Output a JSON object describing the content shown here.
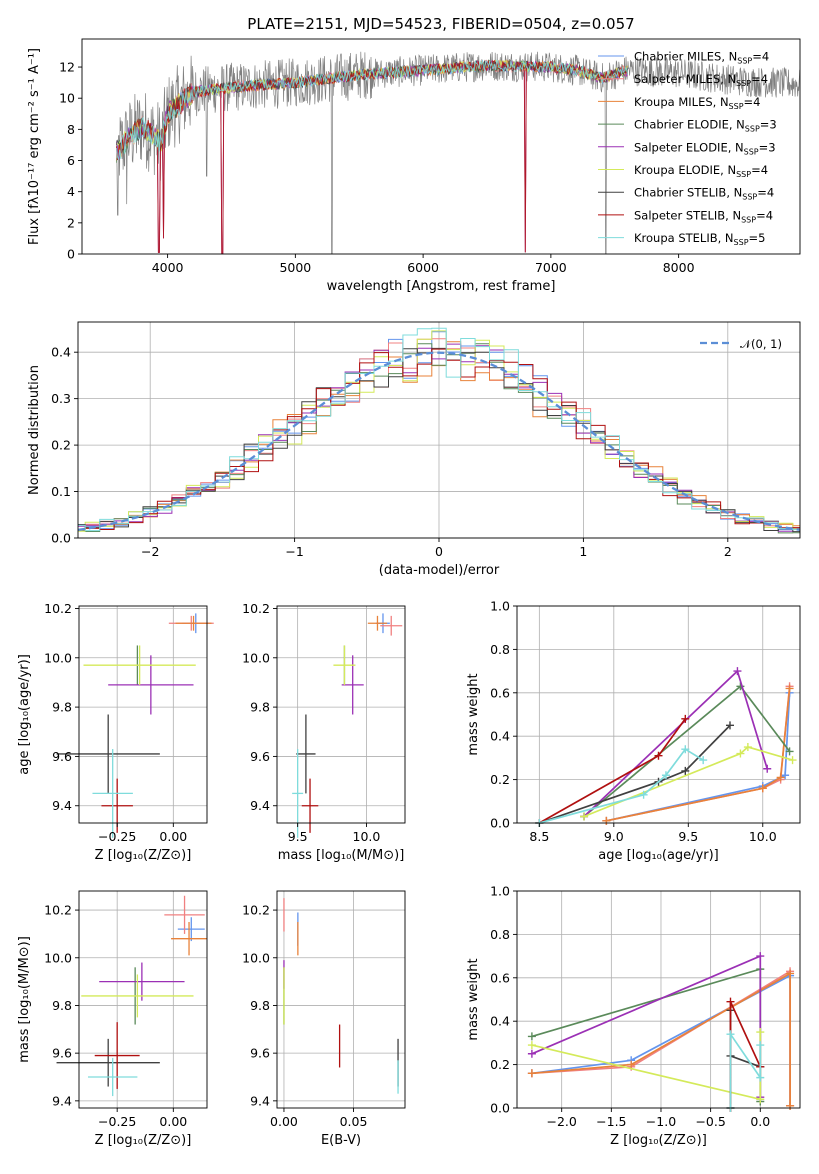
{
  "page": {
    "title": "PLATE=2151, MJD=54523, FIBERID=0504, z=0.057",
    "colors": {
      "Chabrier MILES": "#6495ed",
      "Salpeter MILES": "#f08080",
      "Kroupa MILES": "#e8823a",
      "Chabrier ELODIE": "#5a8a5a",
      "Salpeter ELODIE": "#9b30b5",
      "Kroupa ELODIE": "#d4ea5a",
      "Chabrier STELIB": "#404040",
      "Salpeter STELIB": "#b01010",
      "Kroupa STELIB": "#7fdcdc",
      "data": "#808080"
    }
  },
  "chart_data": [
    {
      "id": "spectrum",
      "type": "line",
      "xlabel": "wavelength [Angstrom, rest frame]",
      "ylabel": "Flux [fλ10⁻¹⁷ erg cm⁻² s⁻¹ A⁻¹]",
      "xlim": [
        3330,
        8950
      ],
      "ylim": [
        0,
        13.8
      ],
      "xticks": [
        4000,
        5000,
        6000,
        7000,
        8000
      ],
      "yticks": [
        0,
        2,
        4,
        6,
        8,
        10,
        12
      ],
      "grid": false,
      "legend_position": "top-right",
      "legend": [
        "Chabrier MILES, N_SSP=4",
        "Salpeter MILES, N_SSP=4",
        "Kroupa MILES, N_SSP=4",
        "Chabrier ELODIE, N_SSP=3",
        "Salpeter ELODIE, N_SSP=3",
        "Kroupa ELODIE, N_SSP=4",
        "Chabrier STELIB, N_SSP=4",
        "Salpeter STELIB, N_SSP=4",
        "Kroupa STELIB, N_SSP=5"
      ],
      "continuum": [
        [
          3600,
          6.5
        ],
        [
          3700,
          7.5
        ],
        [
          3800,
          8.2
        ],
        [
          3950,
          7.2
        ],
        [
          4000,
          9.0
        ],
        [
          4200,
          10.4
        ],
        [
          4500,
          10.7
        ],
        [
          5000,
          11.0
        ],
        [
          5500,
          11.5
        ],
        [
          6000,
          11.8
        ],
        [
          6500,
          12.1
        ],
        [
          7000,
          12.0
        ],
        [
          7200,
          11.8
        ],
        [
          7400,
          11.3
        ],
        [
          7600,
          11.8
        ],
        [
          8000,
          11.6
        ],
        [
          8500,
          11.1
        ],
        [
          8950,
          10.9
        ]
      ],
      "model_range": [
        3600,
        7600
      ],
      "dips": [
        [
          3933,
          0.1
        ],
        [
          3968,
          1.0
        ],
        [
          4430,
          0.0
        ],
        [
          6800,
          0.1
        ]
      ],
      "data_dips": [
        [
          3610,
          2.5
        ],
        [
          3680,
          3.2
        ],
        [
          4305,
          5.0
        ],
        [
          5285,
          0.0
        ],
        [
          7430,
          0.0
        ],
        [
          3590,
          0.0
        ]
      ]
    },
    {
      "id": "residual-histogram",
      "type": "line",
      "xlabel": "(data-model)/error",
      "ylabel": "Normed distribution",
      "xlim": [
        -2.5,
        2.5
      ],
      "ylim": [
        0,
        0.465
      ],
      "xticks": [
        -2,
        -1,
        0,
        1,
        2
      ],
      "yticks": [
        0.0,
        0.1,
        0.2,
        0.3,
        0.4
      ],
      "grid": true,
      "legend_position": "top-right",
      "legend": [
        "𝒩(0, 1)"
      ],
      "bin_width": 0.1
    },
    {
      "id": "age-vs-Z",
      "type": "scatter",
      "xlabel": "Z [log₁₀(Z/Z⊙)]",
      "ylabel": "age  [log₁₀(age/yr)]",
      "xlim": [
        -0.42,
        0.15
      ],
      "ylim": [
        9.33,
        10.21
      ],
      "xticks": [
        -0.25,
        0.0
      ],
      "yticks": [
        9.4,
        9.6,
        9.8,
        10.0,
        10.2
      ],
      "grid": true,
      "points": [
        {
          "series": "Chabrier MILES",
          "x": 0.1,
          "y": 10.14,
          "xerr": 0.06,
          "yerr": 0.04
        },
        {
          "series": "Salpeter MILES",
          "x": 0.08,
          "y": 10.14,
          "xerr": 0.1,
          "yerr": 0.03
        },
        {
          "series": "Kroupa MILES",
          "x": 0.09,
          "y": 10.14,
          "xerr": 0.08,
          "yerr": 0.03
        },
        {
          "series": "Chabrier ELODIE",
          "x": -0.16,
          "y": 9.97,
          "xerr": 0.0,
          "yerr": 0.08
        },
        {
          "series": "Salpeter ELODIE",
          "x": -0.1,
          "y": 9.89,
          "xerr": 0.19,
          "yerr": 0.12
        },
        {
          "series": "Kroupa ELODIE",
          "x": -0.15,
          "y": 9.97,
          "xerr": 0.25,
          "yerr": 0.08
        },
        {
          "series": "Chabrier STELIB",
          "x": -0.29,
          "y": 9.61,
          "xerr": 0.23,
          "yerr": 0.16
        },
        {
          "series": "Salpeter STELIB",
          "x": -0.25,
          "y": 9.4,
          "xerr": 0.07,
          "yerr": 0.11
        },
        {
          "series": "Kroupa STELIB",
          "x": -0.27,
          "y": 9.45,
          "xerr": 0.09,
          "yerr": 0.18
        }
      ]
    },
    {
      "id": "age-vs-mass",
      "type": "scatter",
      "xlabel": "mass [log₁₀(M/M⊙)]",
      "ylabel": "",
      "xlim": [
        9.35,
        10.28
      ],
      "ylim": [
        9.33,
        10.21
      ],
      "xticks": [
        9.5,
        10.0
      ],
      "yticks": [
        9.4,
        9.6,
        9.8,
        10.0,
        10.2
      ],
      "grid": true,
      "points": [
        {
          "series": "Chabrier MILES",
          "x": 10.12,
          "y": 10.14,
          "xerr": 0.05,
          "yerr": 0.04
        },
        {
          "series": "Salpeter MILES",
          "x": 10.18,
          "y": 10.13,
          "xerr": 0.08,
          "yerr": 0.04
        },
        {
          "series": "Kroupa MILES",
          "x": 10.08,
          "y": 10.14,
          "xerr": 0.07,
          "yerr": 0.03
        },
        {
          "series": "Chabrier ELODIE",
          "x": 9.84,
          "y": 9.97,
          "xerr": 0.0,
          "yerr": 0.08
        },
        {
          "series": "Salpeter ELODIE",
          "x": 9.9,
          "y": 9.89,
          "xerr": 0.08,
          "yerr": 0.12
        },
        {
          "series": "Kroupa ELODIE",
          "x": 9.84,
          "y": 9.97,
          "xerr": 0.08,
          "yerr": 0.08
        },
        {
          "series": "Chabrier STELIB",
          "x": 9.56,
          "y": 9.61,
          "xerr": 0.07,
          "yerr": 0.16
        },
        {
          "series": "Salpeter STELIB",
          "x": 9.59,
          "y": 9.4,
          "xerr": 0.06,
          "yerr": 0.11
        },
        {
          "series": "Kroupa STELIB",
          "x": 9.5,
          "y": 9.45,
          "xerr": 0.04,
          "yerr": 0.18
        }
      ]
    },
    {
      "id": "mass-weight-vs-age",
      "type": "line",
      "xlabel": "age  [log₁₀(age/yr)]",
      "ylabel": "mass weight",
      "xlim": [
        8.35,
        10.25
      ],
      "ylim": [
        0,
        1
      ],
      "xticks": [
        8.5,
        9.0,
        9.5,
        10.0
      ],
      "yticks": [
        0.0,
        0.2,
        0.4,
        0.6,
        0.8,
        1.0
      ],
      "grid": true,
      "series": [
        {
          "name": "Chabrier MILES",
          "points": [
            [
              8.95,
              0.01
            ],
            [
              10.0,
              0.17
            ],
            [
              10.15,
              0.22
            ],
            [
              10.18,
              0.6
            ]
          ]
        },
        {
          "name": "Salpeter MILES",
          "points": [
            [
              8.95,
              0.01
            ],
            [
              10.0,
              0.16
            ],
            [
              10.12,
              0.2
            ],
            [
              10.18,
              0.63
            ]
          ]
        },
        {
          "name": "Kroupa MILES",
          "points": [
            [
              8.95,
              0.01
            ],
            [
              10.0,
              0.16
            ],
            [
              10.12,
              0.21
            ],
            [
              10.18,
              0.62
            ]
          ]
        },
        {
          "name": "Chabrier ELODIE",
          "points": [
            [
              8.8,
              0.03
            ],
            [
              9.85,
              0.63
            ],
            [
              10.18,
              0.33
            ]
          ]
        },
        {
          "name": "Salpeter ELODIE",
          "points": [
            [
              8.8,
              0.03
            ],
            [
              9.83,
              0.7
            ],
            [
              10.03,
              0.25
            ]
          ]
        },
        {
          "name": "Kroupa ELODIE",
          "points": [
            [
              8.8,
              0.03
            ],
            [
              9.85,
              0.32
            ],
            [
              9.9,
              0.35
            ],
            [
              10.2,
              0.29
            ]
          ]
        },
        {
          "name": "Chabrier STELIB",
          "points": [
            [
              8.5,
              0.0
            ],
            [
              9.3,
              0.19
            ],
            [
              9.48,
              0.24
            ],
            [
              9.78,
              0.45
            ]
          ]
        },
        {
          "name": "Salpeter STELIB",
          "points": [
            [
              8.5,
              0.0
            ],
            [
              9.3,
              0.31
            ],
            [
              9.48,
              0.48
            ]
          ]
        },
        {
          "name": "Kroupa STELIB",
          "points": [
            [
              8.5,
              0.0
            ],
            [
              9.2,
              0.13
            ],
            [
              9.35,
              0.22
            ],
            [
              9.48,
              0.34
            ],
            [
              9.6,
              0.29
            ]
          ]
        }
      ]
    },
    {
      "id": "mass-vs-Z",
      "type": "scatter",
      "xlabel": "Z [log₁₀(Z/Z⊙)]",
      "ylabel": "mass [log₁₀(M/M⊙)]",
      "xlim": [
        -0.42,
        0.15
      ],
      "ylim": [
        9.37,
        10.28
      ],
      "xticks": [
        -0.25,
        0.0
      ],
      "yticks": [
        9.4,
        9.6,
        9.8,
        10.0,
        10.2
      ],
      "grid": true,
      "points": [
        {
          "series": "Chabrier MILES",
          "x": 0.08,
          "y": 10.12,
          "xerr": 0.06,
          "yerr": 0.05
        },
        {
          "series": "Salpeter MILES",
          "x": 0.05,
          "y": 10.18,
          "xerr": 0.09,
          "yerr": 0.08
        },
        {
          "series": "Kroupa MILES",
          "x": 0.07,
          "y": 10.08,
          "xerr": 0.08,
          "yerr": 0.07
        },
        {
          "series": "Chabrier ELODIE",
          "x": -0.17,
          "y": 9.84,
          "xerr": 0.0,
          "yerr": 0.12
        },
        {
          "series": "Salpeter ELODIE",
          "x": -0.14,
          "y": 9.9,
          "xerr": 0.19,
          "yerr": 0.08
        },
        {
          "series": "Kroupa ELODIE",
          "x": -0.16,
          "y": 9.84,
          "xerr": 0.25,
          "yerr": 0.09
        },
        {
          "series": "Chabrier STELIB",
          "x": -0.29,
          "y": 9.56,
          "xerr": 0.23,
          "yerr": 0.1
        },
        {
          "series": "Salpeter STELIB",
          "x": -0.25,
          "y": 9.59,
          "xerr": 0.1,
          "yerr": 0.14
        },
        {
          "series": "Kroupa STELIB",
          "x": -0.27,
          "y": 9.5,
          "xerr": 0.11,
          "yerr": 0.08
        }
      ]
    },
    {
      "id": "mass-vs-EBV",
      "type": "scatter",
      "xlabel": "E(B-V)",
      "ylabel": "",
      "xlim": [
        -0.005,
        0.087
      ],
      "ylim": [
        9.37,
        10.28
      ],
      "xticks": [
        0.0,
        0.05
      ],
      "yticks": [
        9.4,
        9.6,
        9.8,
        10.0,
        10.2
      ],
      "grid": true,
      "points": [
        {
          "series": "Chabrier MILES",
          "x": 0.01,
          "y": 10.12,
          "xerr": 0.0,
          "yerr": 0.07
        },
        {
          "series": "Salpeter MILES",
          "x": 0.0,
          "y": 10.18,
          "xerr": 0.0,
          "yerr": 0.07
        },
        {
          "series": "Kroupa MILES",
          "x": 0.01,
          "y": 10.08,
          "xerr": 0.0,
          "yerr": 0.07
        },
        {
          "series": "Chabrier ELODIE",
          "x": 0.0,
          "y": 9.84,
          "xerr": 0.0,
          "yerr": 0.12
        },
        {
          "series": "Salpeter ELODIE",
          "x": 0.0,
          "y": 9.93,
          "xerr": 0.0,
          "yerr": 0.06
        },
        {
          "series": "Kroupa ELODIE",
          "x": 0.0,
          "y": 9.84,
          "xerr": 0.0,
          "yerr": 0.12
        },
        {
          "series": "Chabrier STELIB",
          "x": 0.082,
          "y": 9.56,
          "xerr": 0.0,
          "yerr": 0.1
        },
        {
          "series": "Salpeter STELIB",
          "x": 0.04,
          "y": 9.63,
          "xerr": 0.0,
          "yerr": 0.09
        },
        {
          "series": "Kroupa STELIB",
          "x": 0.082,
          "y": 9.5,
          "xerr": 0.0,
          "yerr": 0.07
        }
      ]
    },
    {
      "id": "mass-weight-vs-Z",
      "type": "line",
      "xlabel": "Z [log₁₀(Z/Z⊙)]",
      "ylabel": "mass weight",
      "xlim": [
        -2.45,
        0.4
      ],
      "ylim": [
        0,
        1
      ],
      "xticks": [
        -2.0,
        -1.5,
        -1.0,
        -0.5,
        0.0
      ],
      "yticks": [
        0.0,
        0.2,
        0.4,
        0.6,
        0.8,
        1.0
      ],
      "grid": true,
      "series": [
        {
          "name": "Chabrier MILES",
          "points": [
            [
              -2.3,
              0.16
            ],
            [
              -1.3,
              0.22
            ],
            [
              0.3,
              0.61
            ],
            [
              0.3,
              0.01
            ]
          ]
        },
        {
          "name": "Salpeter MILES",
          "points": [
            [
              -2.3,
              0.16
            ],
            [
              -1.3,
              0.19
            ],
            [
              0.3,
              0.63
            ],
            [
              0.3,
              0.01
            ]
          ]
        },
        {
          "name": "Kroupa MILES",
          "points": [
            [
              -2.3,
              0.16
            ],
            [
              -1.3,
              0.2
            ],
            [
              0.3,
              0.62
            ],
            [
              0.3,
              0.01
            ]
          ]
        },
        {
          "name": "Chabrier ELODIE",
          "points": [
            [
              -2.3,
              0.33
            ],
            [
              0.0,
              0.64
            ],
            [
              0.0,
              0.03
            ]
          ]
        },
        {
          "name": "Salpeter ELODIE",
          "points": [
            [
              -2.3,
              0.25
            ],
            [
              0.0,
              0.7
            ],
            [
              0.0,
              0.05
            ]
          ]
        },
        {
          "name": "Kroupa ELODIE",
          "points": [
            [
              -2.3,
              0.29
            ],
            [
              0.0,
              0.04
            ],
            [
              0.0,
              0.35
            ]
          ]
        },
        {
          "name": "Chabrier STELIB",
          "points": [
            [
              -0.3,
              0.0
            ],
            [
              -0.3,
              0.45
            ],
            [
              -0.3,
              0.24
            ],
            [
              0.0,
              0.19
            ]
          ]
        },
        {
          "name": "Salpeter STELIB",
          "points": [
            [
              -0.3,
              0.0
            ],
            [
              -0.3,
              0.49
            ],
            [
              0.0,
              0.19
            ]
          ]
        },
        {
          "name": "Kroupa STELIB",
          "points": [
            [
              -0.3,
              0.0
            ],
            [
              -0.3,
              0.34
            ],
            [
              0.0,
              0.14
            ],
            [
              0.0,
              0.29
            ]
          ]
        }
      ]
    }
  ]
}
